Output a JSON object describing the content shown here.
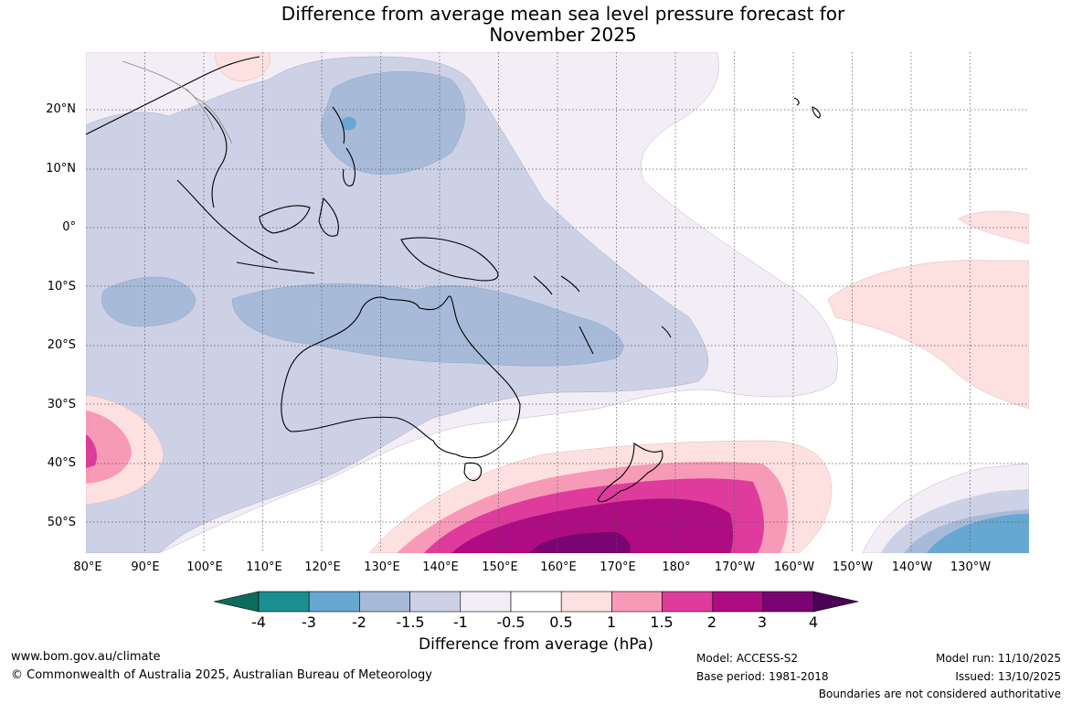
{
  "title": {
    "line1": "Difference from average mean sea level pressure forecast for",
    "line2": "November 2025"
  },
  "map": {
    "lat_labels": [
      "20°N",
      "10°N",
      "0°",
      "10°S",
      "20°S",
      "30°S",
      "40°S",
      "50°S"
    ],
    "lon_labels": [
      "80°E",
      "90°E",
      "100°E",
      "110°E",
      "120°E",
      "130°E",
      "140°E",
      "150°E",
      "160°E",
      "170°E",
      "180°",
      "170°W",
      "160°W",
      "150°W",
      "140°W",
      "130°W"
    ],
    "regions": [
      "australia-continent",
      "new-zealand",
      "indonesia",
      "papua-new-guinea",
      "philippines",
      "southeast-asia",
      "hawaii"
    ]
  },
  "colorbar": {
    "ticks": [
      "-4",
      "-3",
      "-2",
      "-1.5",
      "-1",
      "-0.5",
      "0.5",
      "1",
      "1.5",
      "2",
      "3",
      "4"
    ],
    "colors": [
      "#0d6b5e",
      "#1a8f92",
      "#66a8d1",
      "#a7bbd9",
      "#cdd1e6",
      "#f3edf6",
      "#ffffff",
      "#fde0e0",
      "#f79ab8",
      "#de3b9c",
      "#ae0c82",
      "#7a0572",
      "#4a0355"
    ],
    "label": "Difference from average (hPa)"
  },
  "footer": {
    "website": "www.bom.gov.au/climate",
    "copyright": "© Commonwealth of Australia 2025, Australian Bureau of Meteorology",
    "model": "Model: ACCESS-S2",
    "base_period": "Base period: 1981-2018",
    "model_run": "Model run: 11/10/2025",
    "issued": "Issued: 13/10/2025",
    "disclaimer": "Boundaries are not considered authoritative"
  }
}
